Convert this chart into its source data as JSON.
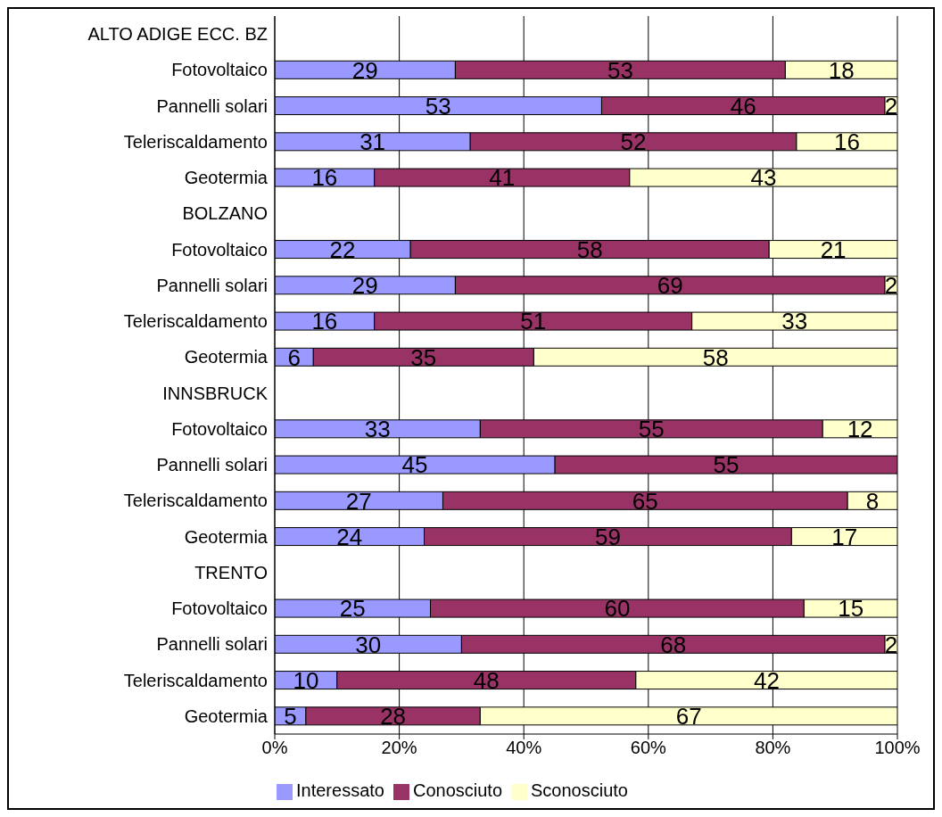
{
  "chart_data": {
    "type": "bar",
    "orientation": "horizontal",
    "stacked": true,
    "categories": [
      "ALTO ADIGE ECC. BZ",
      "Fotovoltaico",
      "Pannelli solari",
      "Teleriscaldamento",
      "Geotermia",
      "BOLZANO",
      "Fotovoltaico",
      "Pannelli solari",
      "Teleriscaldamento",
      "Geotermia",
      "INNSBRUCK",
      "Fotovoltaico",
      "Pannelli solari",
      "Teleriscaldamento",
      "Geotermia",
      "TRENTO",
      "Fotovoltaico",
      "Pannelli solari",
      "Teleriscaldamento",
      "Geotermia"
    ],
    "series": [
      {
        "name": "Interessato",
        "color": "#9999ff",
        "values": [
          null,
          29,
          52.5,
          31.4,
          16,
          null,
          21.8,
          29,
          16,
          6.2,
          null,
          33,
          45,
          27,
          24,
          null,
          25,
          30,
          10,
          5
        ],
        "value_labels": [
          null,
          "29",
          "53",
          "31",
          "16",
          null,
          "22",
          "29",
          "16",
          "6",
          null,
          "33",
          "45",
          "27",
          "24",
          null,
          "25",
          "30",
          "10",
          "5"
        ]
      },
      {
        "name": "Conosciuto",
        "color": "#993366",
        "values": [
          null,
          53,
          45.5,
          52.4,
          41,
          null,
          57.6,
          69,
          51,
          35.4,
          null,
          55,
          55,
          65,
          59,
          null,
          60,
          68,
          48,
          28
        ],
        "value_labels": [
          null,
          "53",
          "46",
          "52",
          "41",
          null,
          "58",
          "69",
          "51",
          "35",
          null,
          "55",
          "55",
          "65",
          "59",
          null,
          "60",
          "68",
          "48",
          "28"
        ]
      },
      {
        "name": "Sconosciuto",
        "color": "#ffffcc",
        "values": [
          null,
          18,
          2,
          16.2,
          43,
          null,
          20.6,
          2,
          33,
          58.4,
          null,
          12,
          null,
          8,
          17,
          null,
          15,
          2,
          42,
          67
        ],
        "value_labels": [
          null,
          "18",
          "2",
          "16",
          "43",
          null,
          "21",
          "2",
          "33",
          "58",
          null,
          "12",
          null,
          "8",
          "17",
          null,
          "15",
          "2",
          "42",
          "67"
        ]
      }
    ],
    "xlim": [
      0,
      100
    ],
    "xticks": [
      {
        "value": 0,
        "label": "0%"
      },
      {
        "value": 20,
        "label": "20%"
      },
      {
        "value": 40,
        "label": "40%"
      },
      {
        "value": 60,
        "label": "60%"
      },
      {
        "value": 80,
        "label": "80%"
      },
      {
        "value": 100,
        "label": "100%"
      }
    ],
    "grid": "x",
    "legend": "bottom"
  }
}
